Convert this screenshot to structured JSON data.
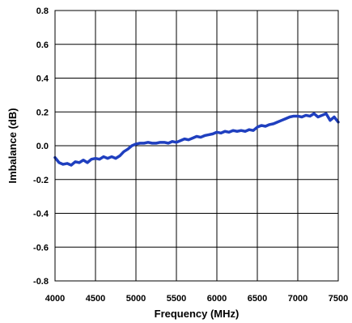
{
  "chart_data": {
    "type": "line",
    "xlabel": "Frequency (MHz)",
    "ylabel": "Imbalance (dB)",
    "xlim": [
      4000,
      7500
    ],
    "ylim": [
      -0.8,
      0.8
    ],
    "x_ticks": [
      4000,
      4500,
      5000,
      5500,
      6000,
      6500,
      7000,
      7500
    ],
    "x_tick_labels": [
      "4000",
      "4500",
      "5000",
      "5500",
      "6000",
      "6500",
      "7000",
      "7500"
    ],
    "y_ticks": [
      0.8,
      0.6,
      0.4,
      0.2,
      0.0,
      -0.2,
      -0.4,
      -0.6,
      -0.8
    ],
    "y_tick_labels": [
      "0.8",
      "0.6",
      "0.4",
      "0.2",
      "0.0",
      "-0.2",
      "-0.4",
      "-0.6",
      "-0.8"
    ],
    "grid": true,
    "series": [
      {
        "color": "#1f3fbf",
        "x": [
          4000,
          4050,
          4100,
          4150,
          4200,
          4250,
          4300,
          4350,
          4400,
          4450,
          4500,
          4550,
          4600,
          4650,
          4700,
          4750,
          4800,
          4850,
          4900,
          4950,
          5000,
          5050,
          5100,
          5150,
          5200,
          5250,
          5300,
          5350,
          5400,
          5450,
          5500,
          5550,
          5600,
          5650,
          5700,
          5750,
          5800,
          5850,
          5900,
          5950,
          6000,
          6050,
          6100,
          6150,
          6200,
          6250,
          6300,
          6350,
          6400,
          6450,
          6500,
          6550,
          6600,
          6650,
          6700,
          6750,
          6800,
          6850,
          6900,
          6950,
          7000,
          7050,
          7100,
          7150,
          7200,
          7250,
          7300,
          7350,
          7400,
          7450,
          7500
        ],
        "y": [
          -0.07,
          -0.1,
          -0.11,
          -0.105,
          -0.115,
          -0.095,
          -0.1,
          -0.085,
          -0.1,
          -0.08,
          -0.075,
          -0.08,
          -0.065,
          -0.075,
          -0.065,
          -0.075,
          -0.06,
          -0.035,
          -0.02,
          0.0,
          0.01,
          0.015,
          0.015,
          0.02,
          0.015,
          0.015,
          0.02,
          0.02,
          0.015,
          0.025,
          0.02,
          0.03,
          0.04,
          0.035,
          0.045,
          0.055,
          0.05,
          0.06,
          0.065,
          0.07,
          0.08,
          0.075,
          0.085,
          0.08,
          0.09,
          0.085,
          0.09,
          0.085,
          0.095,
          0.09,
          0.11,
          0.12,
          0.115,
          0.125,
          0.13,
          0.14,
          0.15,
          0.16,
          0.17,
          0.175,
          0.175,
          0.17,
          0.18,
          0.175,
          0.19,
          0.17,
          0.18,
          0.19,
          0.15,
          0.17,
          0.14
        ]
      }
    ]
  }
}
